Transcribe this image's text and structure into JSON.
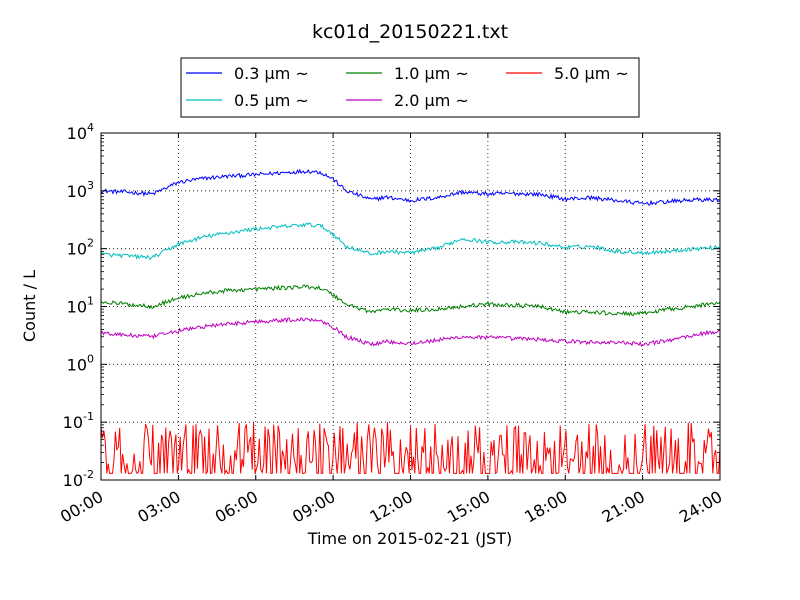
{
  "chart_data": {
    "type": "line",
    "title": "kc01d_20150221.txt",
    "xlabel": "Time on 2015-02-21 (JST)",
    "ylabel": "Count / L",
    "x_domain": [
      "00:00",
      "24:00"
    ],
    "yscale": "log",
    "ylim": [
      0.01,
      10000
    ],
    "grid": true,
    "legend_position": "top-center",
    "xticks": [
      "00:00",
      "03:00",
      "06:00",
      "09:00",
      "12:00",
      "15:00",
      "18:00",
      "21:00",
      "24:00"
    ],
    "yticks": [
      {
        "value": 0.01,
        "base": "10",
        "exp": "-2"
      },
      {
        "value": 0.1,
        "base": "10",
        "exp": "-1"
      },
      {
        "value": 1,
        "base": "10",
        "exp": "0"
      },
      {
        "value": 10,
        "base": "10",
        "exp": "1"
      },
      {
        "value": 100,
        "base": "10",
        "exp": "2"
      },
      {
        "value": 1000,
        "base": "10",
        "exp": "3"
      },
      {
        "value": 10000,
        "base": "10",
        "exp": "4"
      }
    ],
    "series": [
      {
        "name": "0.3 μm ~",
        "color": "#0000ff",
        "x": [
          "00:00",
          "01:00",
          "02:00",
          "03:00",
          "04:00",
          "05:00",
          "06:00",
          "07:00",
          "08:00",
          "08:30",
          "09:00",
          "09:30",
          "10:30",
          "11:00",
          "12:00",
          "13:00",
          "14:00",
          "15:00",
          "16:00",
          "17:00",
          "18:00",
          "19:00",
          "20:00",
          "21:00",
          "22:00",
          "23:00",
          "24:00"
        ],
        "values": [
          1000,
          950,
          880,
          1400,
          1650,
          1800,
          1900,
          2050,
          2200,
          2100,
          1600,
          1000,
          700,
          780,
          680,
          760,
          950,
          880,
          900,
          870,
          720,
          760,
          680,
          600,
          650,
          700,
          700
        ]
      },
      {
        "name": "0.5 μm ~",
        "color": "#00bfbf",
        "x": [
          "00:00",
          "01:00",
          "02:00",
          "03:00",
          "04:00",
          "05:00",
          "06:00",
          "07:00",
          "08:00",
          "08:30",
          "09:00",
          "09:30",
          "10:30",
          "11:00",
          "12:00",
          "13:00",
          "14:00",
          "15:00",
          "16:00",
          "17:00",
          "18:00",
          "19:00",
          "20:00",
          "21:00",
          "22:00",
          "23:00",
          "24:00"
        ],
        "values": [
          80,
          75,
          70,
          120,
          160,
          190,
          220,
          240,
          260,
          250,
          180,
          110,
          80,
          90,
          85,
          100,
          150,
          130,
          130,
          125,
          105,
          110,
          90,
          85,
          90,
          100,
          105
        ]
      },
      {
        "name": "1.0 μm ~",
        "color": "#008000",
        "x": [
          "00:00",
          "01:00",
          "02:00",
          "03:00",
          "04:00",
          "05:00",
          "06:00",
          "07:00",
          "08:00",
          "08:30",
          "09:00",
          "09:30",
          "10:30",
          "11:00",
          "12:00",
          "13:00",
          "14:00",
          "15:00",
          "16:00",
          "17:00",
          "18:00",
          "19:00",
          "20:00",
          "21:00",
          "22:00",
          "23:00",
          "24:00"
        ],
        "values": [
          12,
          11,
          10,
          14,
          17,
          19,
          20,
          21,
          22,
          21,
          16,
          11,
          8,
          9,
          8.5,
          9,
          10,
          11,
          10.5,
          10,
          8,
          8,
          7.5,
          7.5,
          9,
          10,
          12
        ]
      },
      {
        "name": "2.0 μm ~",
        "color": "#bf00bf",
        "x": [
          "00:00",
          "01:00",
          "02:00",
          "03:00",
          "04:00",
          "05:00",
          "06:00",
          "07:00",
          "08:00",
          "08:30",
          "09:00",
          "09:30",
          "10:30",
          "11:00",
          "12:00",
          "13:00",
          "14:00",
          "15:00",
          "16:00",
          "17:00",
          "18:00",
          "19:00",
          "20:00",
          "21:00",
          "22:00",
          "23:00",
          "24:00"
        ],
        "values": [
          3.5,
          3.2,
          3.0,
          3.8,
          4.5,
          5.0,
          5.5,
          5.8,
          6.0,
          5.8,
          4.5,
          3.0,
          2.2,
          2.5,
          2.3,
          2.6,
          3.0,
          2.9,
          2.8,
          2.7,
          2.5,
          2.4,
          2.4,
          2.2,
          2.6,
          3.2,
          3.8
        ]
      },
      {
        "name": "5.0 μm ~",
        "color": "#ff0000",
        "x_range": [
          "00:00",
          "24:00"
        ],
        "value_range": [
          0.013,
          0.1
        ]
      }
    ]
  }
}
